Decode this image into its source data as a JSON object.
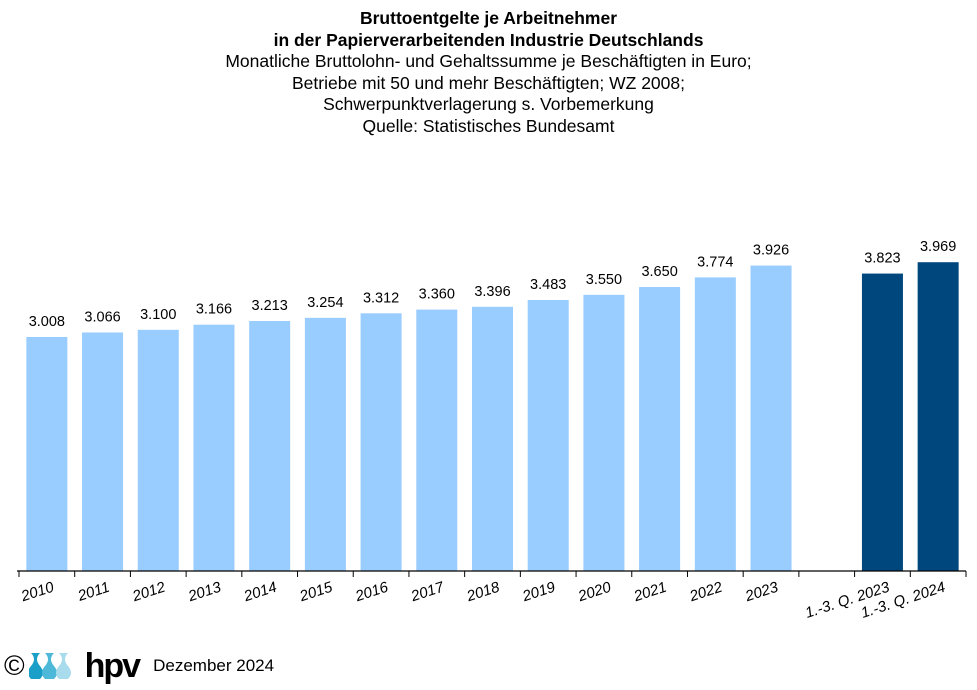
{
  "chart_data": {
    "type": "bar",
    "title": [
      "Bruttoentgelte je Arbeitnehmer",
      "in der Papierverarbeitenden Industrie Deutschlands"
    ],
    "subtitle": [
      "Monatliche Bruttolohn- und Gehaltssumme je Beschäftigten in Euro;",
      "Betriebe mit 50 und mehr Beschäftigten; WZ 2008;",
      "Schwerpunktverlagerung s. Vorbemerkung",
      "Quelle:  Statistisches Bundesamt"
    ],
    "categories": [
      "2010",
      "2011",
      "2012",
      "2013",
      "2014",
      "2015",
      "2016",
      "2017",
      "2018",
      "2019",
      "2020",
      "2021",
      "2022",
      "2023",
      "1.-3. Q. 2023",
      "1.-3. Q. 2024"
    ],
    "values": [
      3008,
      3066,
      3100,
      3166,
      3213,
      3254,
      3312,
      3360,
      3396,
      3483,
      3550,
      3650,
      3774,
      3926,
      3823,
      3969
    ],
    "data_labels": [
      "3.008",
      "3.066",
      "3.100",
      "3.166",
      "3.213",
      "3.254",
      "3.312",
      "3.360",
      "3.396",
      "3.483",
      "3.550",
      "3.650",
      "3.774",
      "3.926",
      "3.823",
      "3.969"
    ],
    "ylim": [
      0,
      5000
    ],
    "xlabel": "",
    "ylabel": "",
    "grid": false,
    "colors": {
      "annual": "#99CCFF",
      "quarterly": "#00477E"
    }
  },
  "footer": {
    "copyright": "©",
    "logo_text": "hpv",
    "date": "Dezember 2024"
  }
}
